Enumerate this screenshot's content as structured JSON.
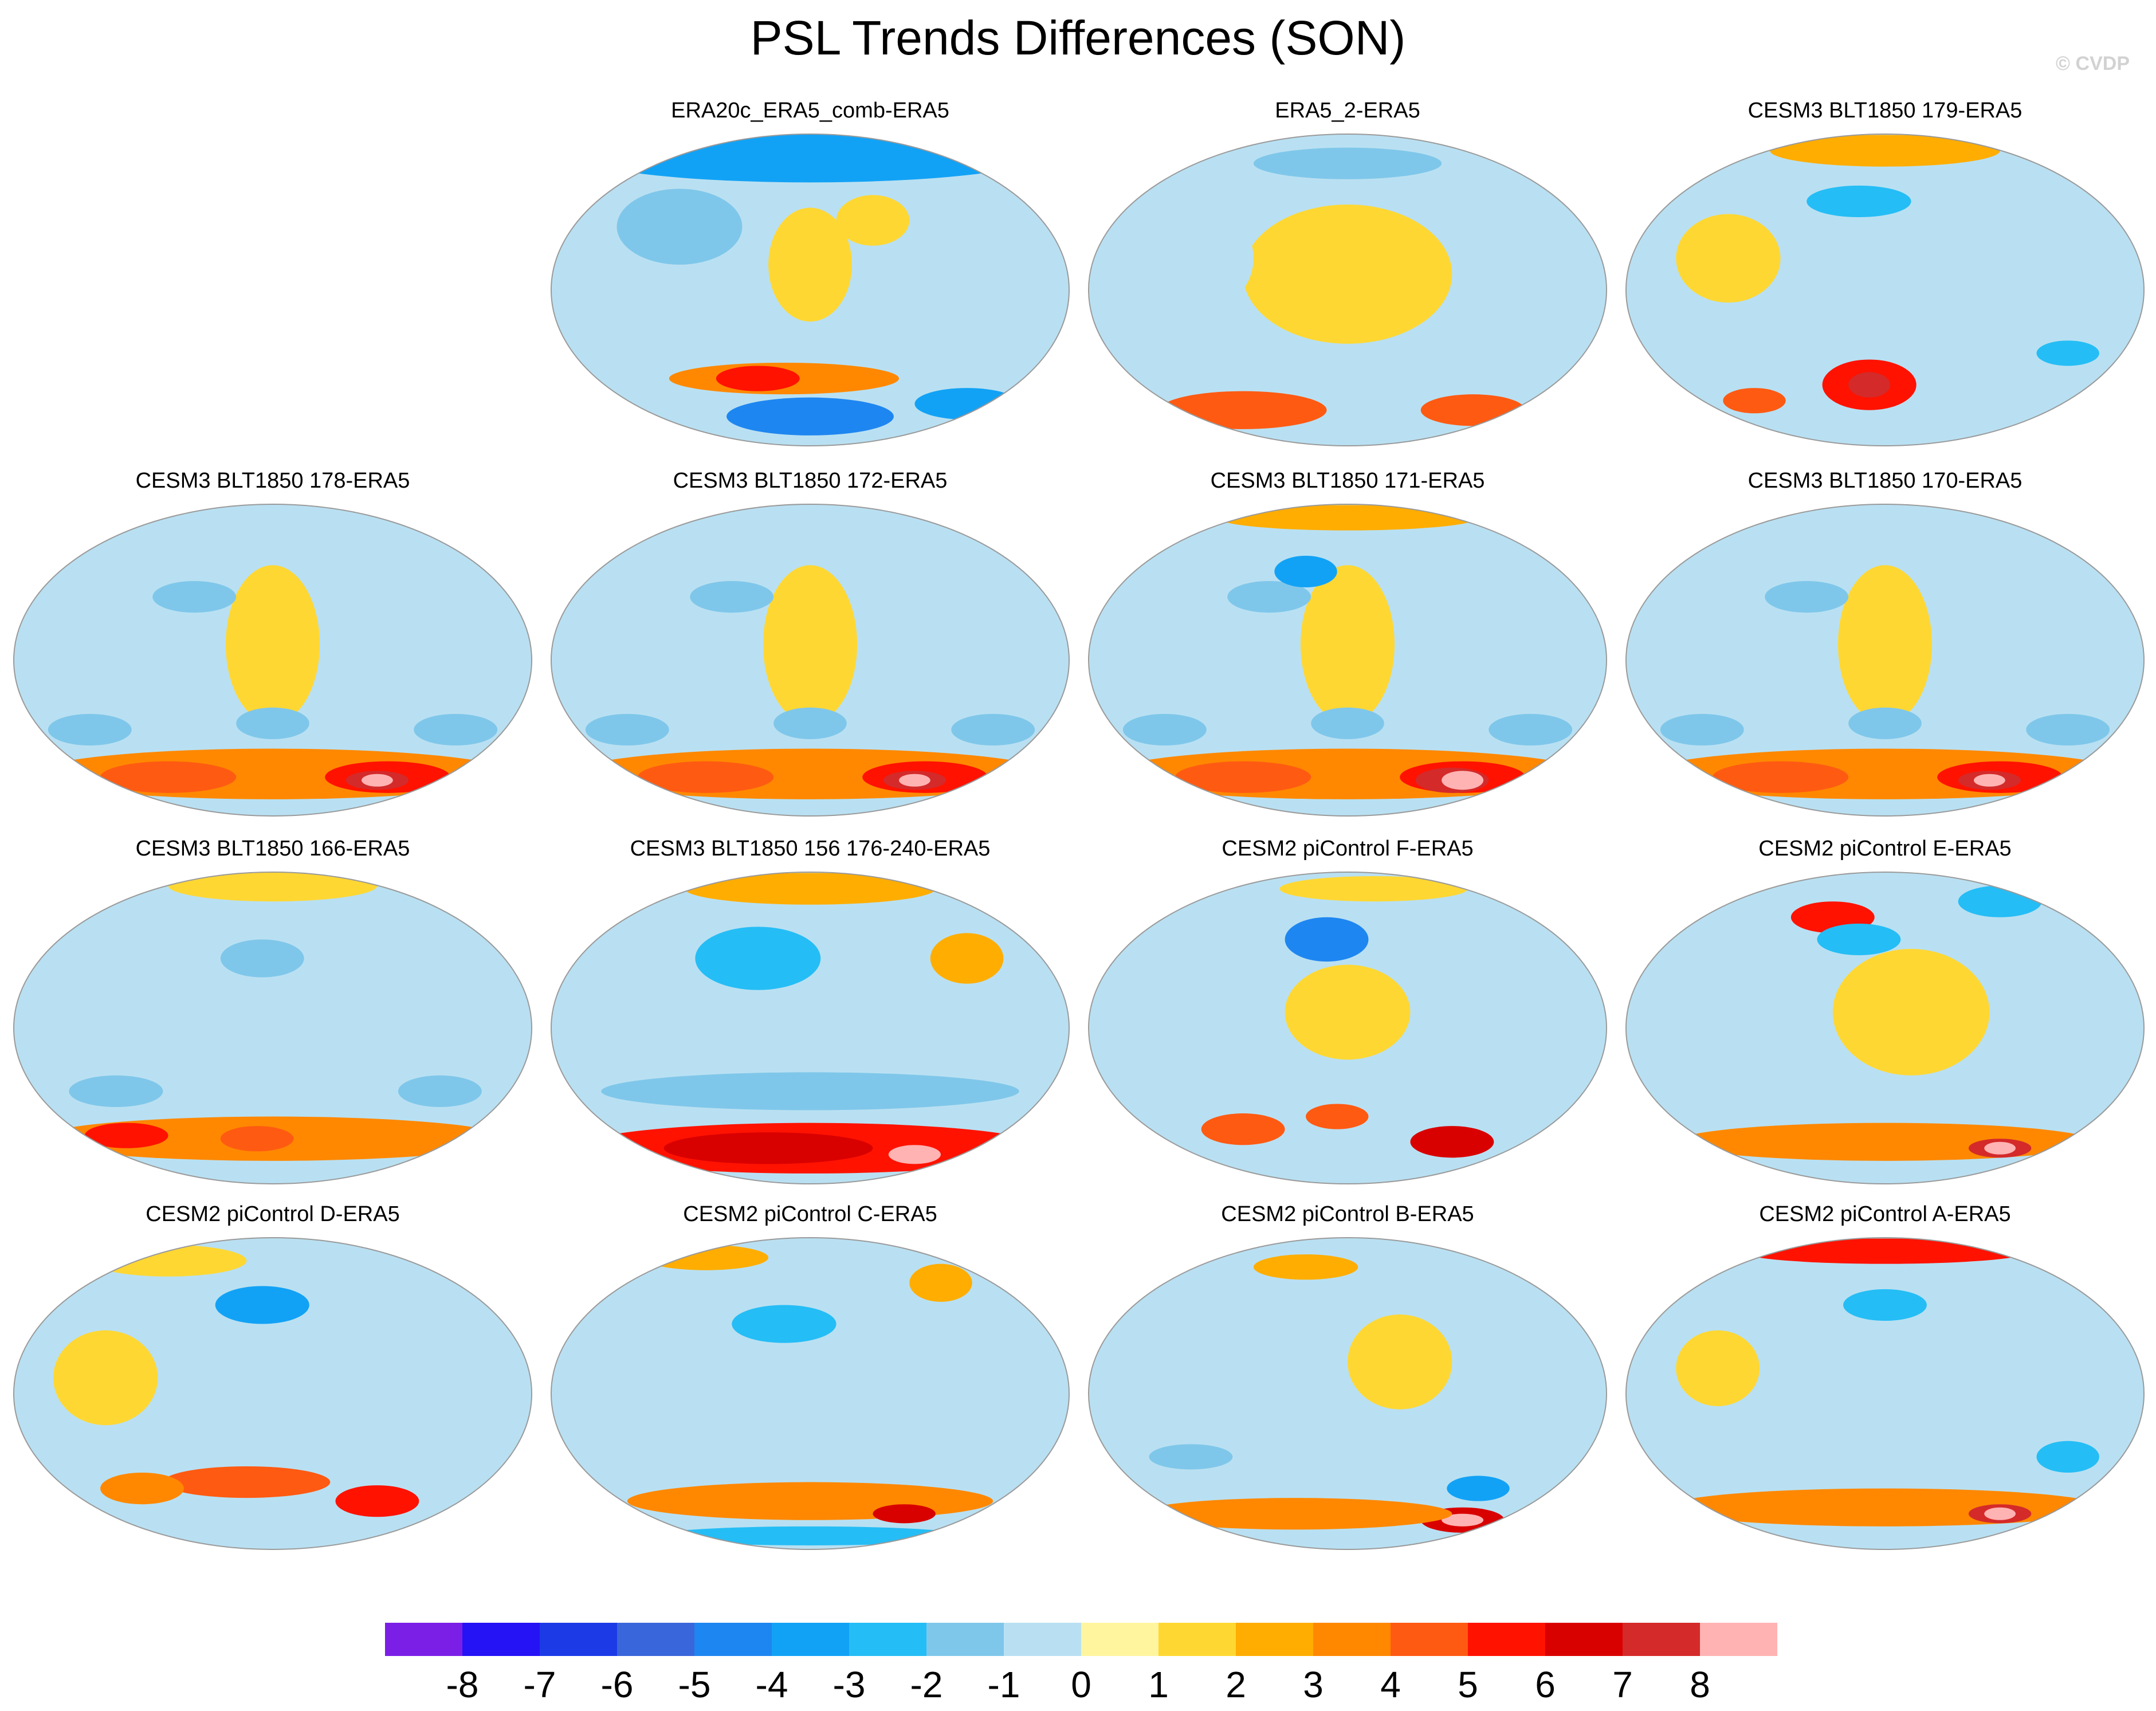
{
  "title": "PSL Trends Differences (SON)",
  "watermark": "© CVDP",
  "panels": [
    {
      "label": "ERA20c_ERA5_comb-ERA5",
      "pattern": "era20c"
    },
    {
      "label": "ERA5_2-ERA5",
      "pattern": "era5_2"
    },
    {
      "label": "CESM3 BLT1850 179-ERA5",
      "pattern": "cesm3_a"
    },
    {
      "label": "CESM3 BLT1850 178-ERA5",
      "pattern": "cesm3_b"
    },
    {
      "label": "CESM3 BLT1850 172-ERA5",
      "pattern": "cesm3_b"
    },
    {
      "label": "CESM3 BLT1850 171-ERA5",
      "pattern": "cesm3_c"
    },
    {
      "label": "CESM3 BLT1850 170-ERA5",
      "pattern": "cesm3_b"
    },
    {
      "label": "CESM3 BLT1850 166-ERA5",
      "pattern": "cesm3_d"
    },
    {
      "label": "CESM3 BLT1850 156 176-240-ERA5",
      "pattern": "cesm3_e"
    },
    {
      "label": "CESM2 piControl F-ERA5",
      "pattern": "cesm2_f"
    },
    {
      "label": "CESM2 piControl E-ERA5",
      "pattern": "cesm2_e"
    },
    {
      "label": "CESM2 piControl D-ERA5",
      "pattern": "cesm2_d"
    },
    {
      "label": "CESM2 piControl C-ERA5",
      "pattern": "cesm2_c"
    },
    {
      "label": "CESM2 piControl B-ERA5",
      "pattern": "cesm2_b"
    },
    {
      "label": "CESM2 piControl A-ERA5",
      "pattern": "cesm2_a"
    }
  ],
  "colorbar": {
    "ticks": [
      "-8",
      "-7",
      "-6",
      "-5",
      "-4",
      "-3",
      "-2",
      "-1",
      "0",
      "1",
      "2",
      "3",
      "4",
      "5",
      "6",
      "7",
      "8"
    ],
    "colors": [
      "#7b1fe6",
      "#2512f5",
      "#1c3be6",
      "#3a66db",
      "#1e86f0",
      "#12a2f5",
      "#25bdf5",
      "#7fc7ea",
      "#b9e0f2",
      "#fff59e",
      "#ffd733",
      "#ffad00",
      "#ff8800",
      "#ff5a12",
      "#ff1200",
      "#d90000",
      "#d42a2a",
      "#ffb3b3"
    ]
  }
}
